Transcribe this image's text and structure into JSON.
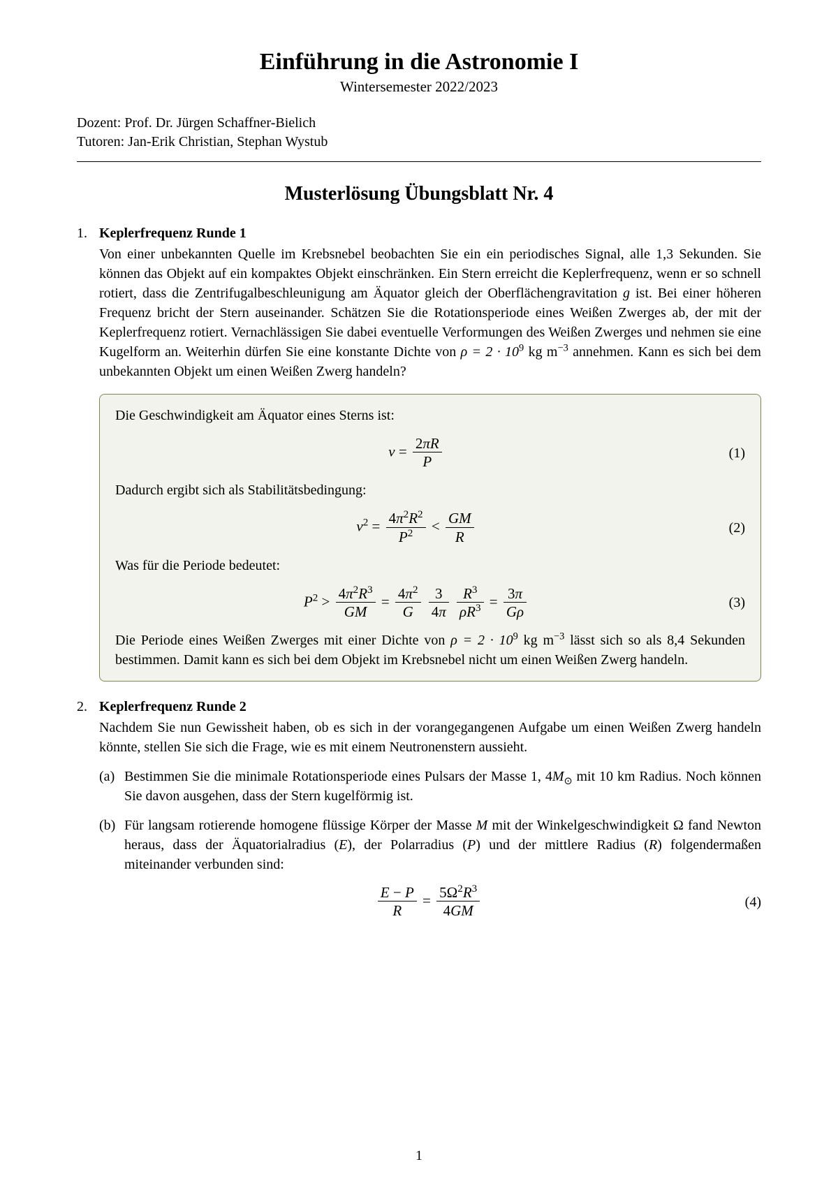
{
  "header": {
    "title": "Einführung in die Astronomie I",
    "subtitle": "Wintersemester 2022/2023",
    "dozent_label": "Dozent:",
    "dozent": "Prof. Dr. Jürgen Schaffner-Bielich",
    "tutoren_label": "Tutoren:",
    "tutoren": "Jan-Erik Christian, Stephan Wystub"
  },
  "heading": "Musterlösung Übungsblatt Nr. 4",
  "q1": {
    "title": "Keplerfrequenz Runde 1",
    "body_pre": "Von einer unbekannten Quelle im Krebsnebel beobachten Sie ein ein periodisches Signal, alle 1,3 Sekunden. Sie können das Objekt auf ein kompaktes Objekt einschränken. Ein Stern erreicht die Keplerfrequenz, wenn er so schnell rotiert, dass die Zentrifugalbeschleunigung am Äquator gleich der Oberflächengravitation ",
    "body_mid": " ist. Bei einer höheren Frequenz bricht der Stern auseinander. Schätzen Sie die Rotationsperiode eines Weißen Zwerges ab, der mit der Keplerfrequenz rotiert. Vernachlässigen Sie dabei eventuelle Verformungen des Weißen Zwerges und nehmen sie eine Kugelform an. Weiterhin dürfen Sie eine konstante Dichte von ",
    "rho_value": "ρ = 2 · 10",
    "rho_exp": "9",
    "rho_unit": " kg m",
    "rho_unit_exp": "−3",
    "body_post": " annehmen. Kann es sich bei dem unbekannten Objekt um einen Weißen Zwerg handeln?",
    "sol_line1": "Die Geschwindigkeit am Äquator eines Sterns ist:",
    "sol_line2": "Dadurch ergibt sich als Stabilitätsbedingung:",
    "sol_line3": "Was für die Periode bedeutet:",
    "sol_concl_pre": "Die Periode eines Weißen Zwerges mit einer Dichte von ",
    "sol_concl_post": " lässt sich so als 8,4 Sekunden bestimmen. Damit kann es sich bei dem Objekt im Krebsnebel nicht um einen Weißen Zwerg handeln."
  },
  "q2": {
    "title": "Keplerfrequenz Runde 2",
    "body": "Nachdem Sie nun Gewissheit haben, ob es sich in der vorangegangenen Aufgabe um einen Weißen Zwerg handeln könnte, stellen Sie sich die Frage, wie es mit einem Neutronenstern aussieht.",
    "a_pre": "Bestimmen Sie die minimale Rotationsperiode eines Pulsars der Masse 1, 4",
    "a_msun": "M",
    "a_post": " mit 10 km Radius. Noch können Sie davon ausgehen, dass der Stern kugelförmig ist.",
    "b_pre": "Für langsam rotierende homogene flüssige Körper der Masse ",
    "b_mid": " mit der Winkelgeschwindigkeit Ω fand Newton heraus, dass der Äquatorialradius (",
    "b_mid2": "), der Polarradius (",
    "b_mid3": ") und der mittlere Radius (",
    "b_post": ") folgendermaßen miteinander verbunden sind:"
  },
  "eqnums": {
    "e1": "(1)",
    "e2": "(2)",
    "e3": "(3)",
    "e4": "(4)"
  },
  "pagenum": "1",
  "colors": {
    "box_bg": "#f2f3ec",
    "box_border": "#7c8a4e"
  }
}
